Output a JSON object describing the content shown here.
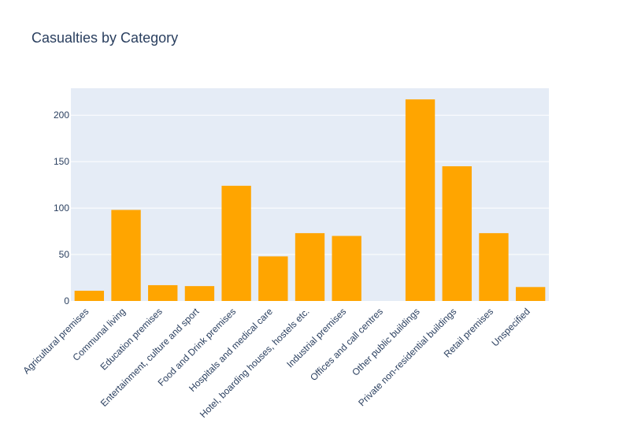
{
  "chart_data": {
    "type": "bar",
    "title": "Casualties by Category",
    "xlabel": "",
    "ylabel": "",
    "categories": [
      "Agricultural premises",
      "Communal living",
      "Education premises",
      "Entertainment, culture and sport",
      "Food and Drink premises",
      "Hospitals and medical care",
      "Hotel, boarding houses, hostels etc.",
      "Industrial premises",
      "Offices and call centres",
      "Other public buildings",
      "Private non-residential buildings",
      "Retail premises",
      "Unspecified"
    ],
    "values": [
      11,
      98,
      17,
      16,
      124,
      48,
      73,
      70,
      0,
      217,
      145,
      73,
      15
    ],
    "ylim": [
      0,
      229
    ],
    "yticks": [
      0,
      50,
      100,
      150,
      200
    ],
    "bar_color": "#ffa500",
    "plot_background": "#e5ecf6",
    "grid": true
  }
}
